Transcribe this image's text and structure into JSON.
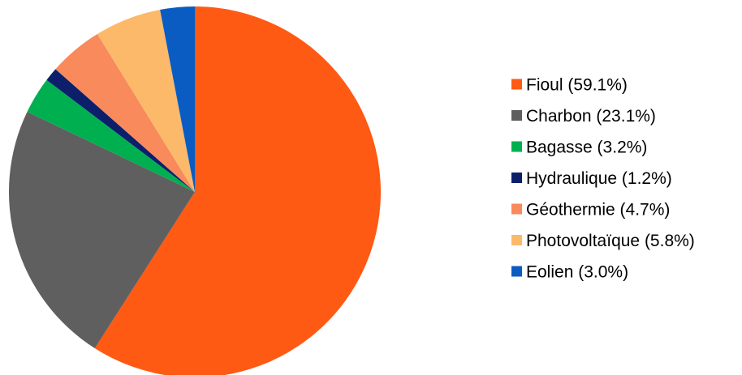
{
  "chart_data": {
    "type": "pie",
    "title": "",
    "legend_position": "right",
    "start_angle_deg": 0,
    "direction": "clockwise",
    "slices": [
      {
        "label": "Fioul (59.1%)",
        "value": 59.1,
        "color": "#FF5A14"
      },
      {
        "label": "Charbon (23.1%)",
        "value": 23.1,
        "color": "#5F5F5F"
      },
      {
        "label": "Bagasse (3.2%)",
        "value": 3.2,
        "color": "#00B050"
      },
      {
        "label": "Hydraulique (1.2%)",
        "value": 1.2,
        "color": "#0D1F6B"
      },
      {
        "label": "Géothermie (4.7%)",
        "value": 4.7,
        "color": "#F88A5C"
      },
      {
        "label": "Photovoltaïque (5.8%)",
        "value": 5.8,
        "color": "#FDB96A"
      },
      {
        "label": "Eolien (3.0%)",
        "value": 3.0,
        "color": "#0A5CC2"
      }
    ]
  }
}
